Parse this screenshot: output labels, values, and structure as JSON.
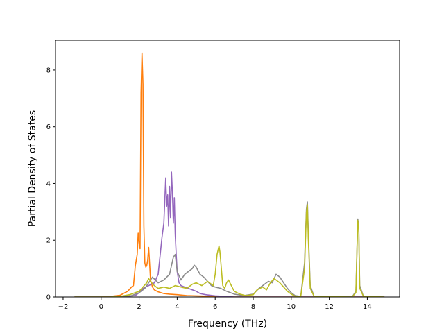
{
  "chart_data": {
    "type": "line",
    "title": "",
    "xlabel": "Frequency (THz)",
    "ylabel": "Partial Density of States",
    "xlim": [
      -2.4,
      15.7
    ],
    "ylim": [
      0,
      9.05
    ],
    "xticks": [
      -2,
      0,
      2,
      4,
      6,
      8,
      10,
      12,
      14
    ],
    "xtick_labels": [
      "−2",
      "0",
      "2",
      "4",
      "6",
      "8",
      "10",
      "12",
      "14"
    ],
    "yticks": [
      0,
      2,
      4,
      6,
      8
    ],
    "ytick_labels": [
      "0",
      "2",
      "4",
      "6",
      "8"
    ],
    "grid": false,
    "legend": "none",
    "series": [
      {
        "color": "#ff7f0e",
        "x": [
          -1.4,
          0.0,
          0.5,
          1.0,
          1.4,
          1.6,
          1.7,
          1.8,
          1.9,
          1.95,
          2.0,
          2.05,
          2.1,
          2.15,
          2.2,
          2.25,
          2.3,
          2.35,
          2.4,
          2.45,
          2.5,
          2.55,
          2.6,
          2.7,
          2.8,
          3.0,
          3.3,
          3.6,
          4.0,
          4.5,
          5.0,
          5.5,
          6.0,
          6.5,
          7.0,
          14.9
        ],
        "y": [
          0,
          0,
          0.02,
          0.06,
          0.2,
          0.35,
          0.4,
          1.1,
          1.5,
          2.25,
          1.9,
          1.7,
          7.2,
          8.6,
          7.5,
          2.5,
          1.2,
          1.05,
          1.1,
          1.3,
          1.75,
          1.2,
          0.6,
          0.35,
          0.25,
          0.18,
          0.12,
          0.1,
          0.08,
          0.05,
          0.04,
          0.03,
          0.02,
          0.01,
          0,
          0
        ]
      },
      {
        "color": "#9467bd",
        "x": [
          -1.4,
          1.0,
          1.8,
          2.0,
          2.2,
          2.5,
          2.8,
          3.0,
          3.2,
          3.3,
          3.4,
          3.45,
          3.5,
          3.55,
          3.6,
          3.65,
          3.7,
          3.75,
          3.8,
          3.85,
          3.9,
          3.95,
          4.0,
          4.1,
          4.2,
          4.4,
          4.6,
          4.8,
          5.0,
          5.2,
          5.5,
          6.0,
          6.5,
          7.0,
          14.9
        ],
        "y": [
          0,
          0,
          0.05,
          0.15,
          0.3,
          0.4,
          0.5,
          0.8,
          2.1,
          2.6,
          4.2,
          3.2,
          3.6,
          2.5,
          3.9,
          2.8,
          4.4,
          3.7,
          2.6,
          3.5,
          2.2,
          1.5,
          0.9,
          0.5,
          0.4,
          0.35,
          0.3,
          0.25,
          0.2,
          0.12,
          0.08,
          0.04,
          0.02,
          0,
          0
        ]
      },
      {
        "color": "#8c8c8c",
        "x": [
          -1.4,
          1.0,
          1.6,
          2.0,
          2.3,
          2.5,
          2.7,
          3.0,
          3.3,
          3.6,
          3.8,
          3.9,
          4.0,
          4.2,
          4.4,
          4.6,
          4.8,
          4.9,
          5.0,
          5.2,
          5.4,
          5.6,
          5.8,
          6.0,
          6.3,
          6.6,
          7.0,
          7.5,
          8.0,
          8.3,
          8.6,
          8.8,
          9.0,
          9.2,
          9.4,
          9.6,
          9.8,
          10.0,
          10.2,
          10.5,
          10.7,
          10.8,
          10.85,
          10.9,
          11.0,
          11.2,
          13.2,
          13.4,
          13.5,
          13.55,
          13.6,
          13.8,
          14.9
        ],
        "y": [
          0,
          0,
          0.05,
          0.15,
          0.3,
          0.5,
          0.7,
          0.5,
          0.6,
          0.8,
          1.4,
          1.5,
          0.9,
          0.6,
          0.8,
          0.9,
          1.0,
          1.12,
          1.05,
          0.8,
          0.7,
          0.55,
          0.4,
          0.35,
          0.3,
          0.2,
          0.1,
          0.05,
          0.1,
          0.3,
          0.45,
          0.55,
          0.5,
          0.8,
          0.7,
          0.5,
          0.3,
          0.15,
          0.05,
          0.02,
          1.2,
          3.1,
          3.35,
          2.2,
          0.4,
          0.02,
          0,
          0.2,
          2.75,
          2.5,
          0.4,
          0.02,
          0
        ]
      },
      {
        "color": "#bcbd22",
        "x": [
          -1.4,
          0.5,
          1.0,
          1.5,
          2.0,
          2.2,
          2.4,
          2.5,
          2.6,
          2.8,
          3.0,
          3.3,
          3.6,
          3.9,
          4.2,
          4.5,
          4.8,
          5.0,
          5.3,
          5.6,
          5.9,
          6.0,
          6.1,
          6.2,
          6.25,
          6.3,
          6.4,
          6.5,
          6.6,
          6.7,
          7.0,
          7.3,
          7.6,
          8.0,
          8.2,
          8.5,
          8.7,
          8.9,
          9.1,
          9.2,
          9.4,
          9.6,
          9.8,
          10.0,
          10.2,
          10.5,
          10.7,
          10.8,
          10.85,
          10.9,
          11.0,
          11.2,
          13.2,
          13.4,
          13.5,
          13.55,
          13.6,
          13.8,
          14.9
        ],
        "y": [
          0,
          0,
          0.02,
          0.08,
          0.2,
          0.35,
          0.5,
          0.65,
          0.55,
          0.4,
          0.3,
          0.35,
          0.3,
          0.4,
          0.35,
          0.3,
          0.45,
          0.5,
          0.4,
          0.55,
          0.4,
          0.8,
          1.5,
          1.8,
          1.6,
          1.2,
          0.4,
          0.3,
          0.5,
          0.6,
          0.2,
          0.1,
          0.05,
          0.08,
          0.25,
          0.35,
          0.25,
          0.5,
          0.65,
          0.6,
          0.5,
          0.35,
          0.2,
          0.1,
          0.03,
          0.02,
          1.0,
          3.0,
          3.25,
          2.0,
          0.3,
          0.02,
          0,
          0.15,
          2.7,
          2.4,
          0.3,
          0.02,
          0
        ]
      }
    ]
  }
}
